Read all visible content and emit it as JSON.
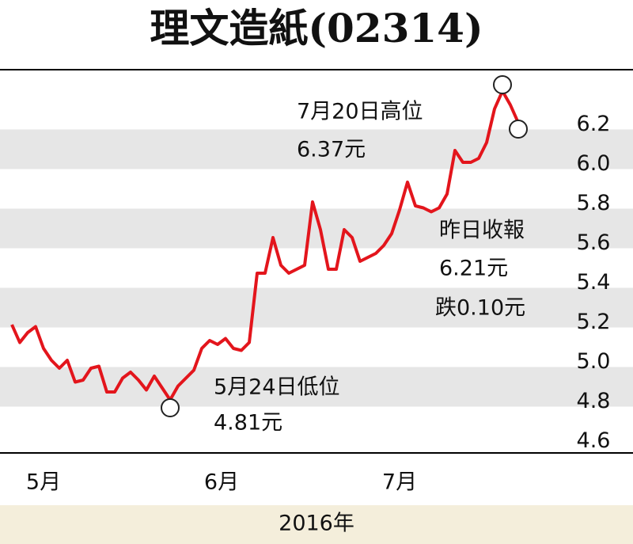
{
  "chart_data": {
    "type": "line",
    "title": "理文造紙(02314)",
    "x_label": "2016年",
    "x": [
      0,
      1,
      2,
      3,
      4,
      5,
      6,
      7,
      8,
      9,
      10,
      11,
      12,
      13,
      14,
      15,
      16,
      17,
      18,
      19,
      20,
      21,
      22,
      23,
      24,
      25,
      26,
      27,
      28,
      29,
      30,
      31,
      32,
      33,
      34,
      35,
      36,
      37,
      38,
      39,
      40,
      41,
      42,
      43,
      44,
      45,
      46,
      47,
      48,
      49,
      50,
      51,
      52,
      53,
      54,
      55,
      56,
      57,
      58,
      59,
      60,
      61,
      62,
      63,
      64
    ],
    "series": [
      {
        "color": "#e3151c",
        "values": [
          5.19,
          5.1,
          5.15,
          5.18,
          5.07,
          5.01,
          4.97,
          5.01,
          4.9,
          4.91,
          4.97,
          4.98,
          4.85,
          4.85,
          4.92,
          4.95,
          4.91,
          4.86,
          4.93,
          4.87,
          4.81,
          4.88,
          4.92,
          4.96,
          5.07,
          5.11,
          5.09,
          5.12,
          5.07,
          5.06,
          5.1,
          5.45,
          5.45,
          5.63,
          5.49,
          5.45,
          5.47,
          5.49,
          5.81,
          5.67,
          5.47,
          5.47,
          5.67,
          5.63,
          5.51,
          5.53,
          5.55,
          5.59,
          5.65,
          5.77,
          5.91,
          5.79,
          5.78,
          5.76,
          5.78,
          5.85,
          6.07,
          6.01,
          6.01,
          6.03,
          6.11,
          6.28,
          6.37,
          6.3,
          6.21
        ]
      }
    ],
    "xlim": [
      -1.5,
      70.5
    ],
    "xticks": [
      {
        "value": 4,
        "label": "5月"
      },
      {
        "value": 26.5,
        "label": "6月"
      },
      {
        "value": 49,
        "label": "7月"
      }
    ],
    "ylim": [
      4.55,
      6.45
    ],
    "yticks": [
      4.6,
      4.8,
      {
        "value": 5.0,
        "label": "5.0"
      },
      5.2,
      5.4,
      5.6,
      5.8,
      {
        "value": 6.0,
        "label": "6.0"
      },
      6.2
    ],
    "annotations": [
      "7月20日高位",
      "6.37元",
      "昨日收報",
      "6.21元",
      "跌0.10元",
      "5月24日低位",
      "4.81元"
    ]
  }
}
